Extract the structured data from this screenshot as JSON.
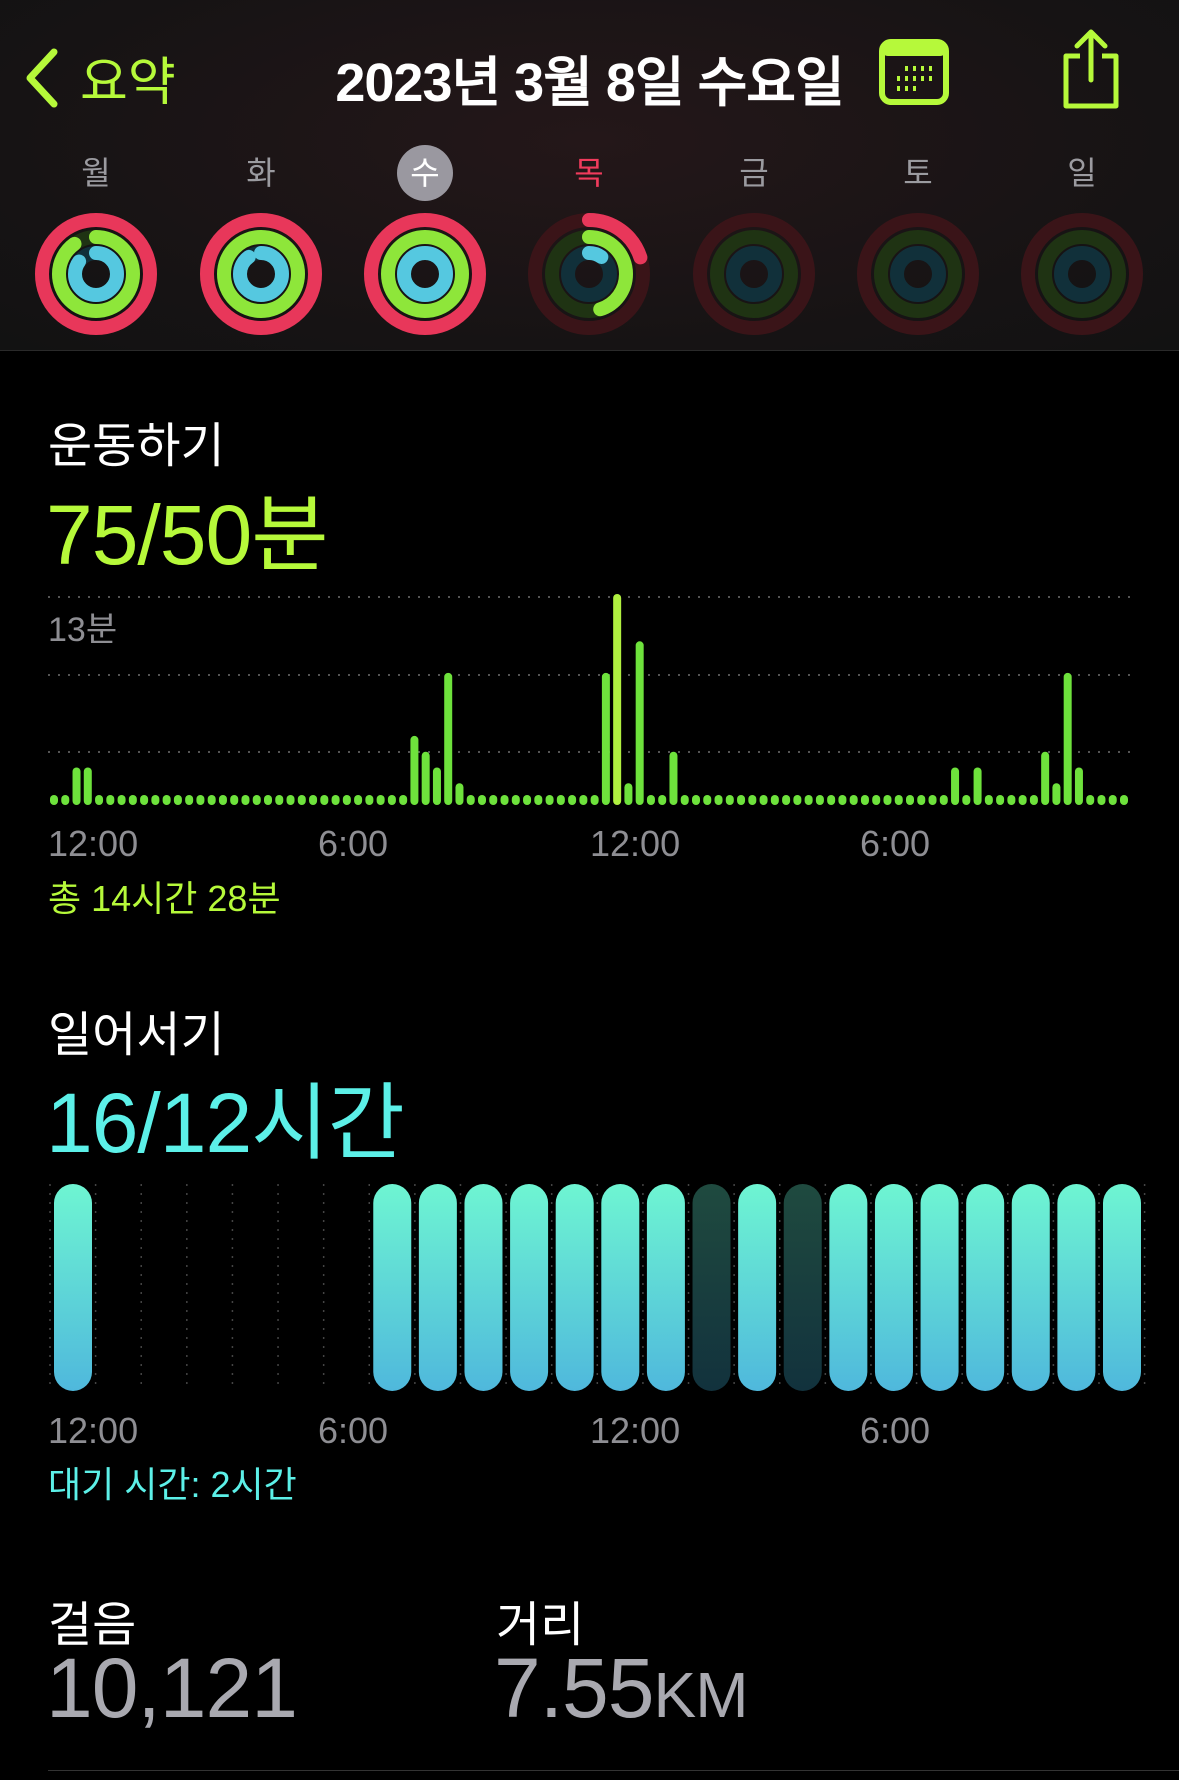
{
  "header": {
    "back_label": "요약",
    "title": "2023년 3월 8일 수요일",
    "calendar_icon": "calendar-icon",
    "share_icon": "share-icon",
    "days": [
      {
        "label": "월",
        "move": 1.0,
        "exercise": 0.9,
        "stand": 0.85,
        "state": "past"
      },
      {
        "label": "화",
        "move": 1.0,
        "exercise": 1.0,
        "stand": 0.9,
        "state": "past"
      },
      {
        "label": "수",
        "move": 1.0,
        "exercise": 1.0,
        "stand": 1.0,
        "state": "selected"
      },
      {
        "label": "목",
        "move": 0.2,
        "exercise": 0.45,
        "stand": 0.1,
        "state": "today"
      },
      {
        "label": "금",
        "move": 0,
        "exercise": 0,
        "stand": 0,
        "state": "future"
      },
      {
        "label": "토",
        "move": 0,
        "exercise": 0,
        "stand": 0,
        "state": "future"
      },
      {
        "label": "일",
        "move": 0,
        "exercise": 0,
        "stand": 0,
        "state": "future"
      }
    ]
  },
  "colors": {
    "accent": "#b6f93a",
    "exercise": "#6ee23c",
    "stand": "#5cf0e8",
    "move": "#f03b5c"
  },
  "exercise": {
    "title": "운동하기",
    "value": "75/50분",
    "total": "총 14시간 28분",
    "chart_data": {
      "type": "bar",
      "interval": "15분",
      "ymax_label": "13분",
      "ylim": [
        0,
        13
      ],
      "x_ticks": [
        "12:00",
        "6:00",
        "12:00",
        "6:00"
      ],
      "values": [
        0,
        0,
        2,
        2,
        0,
        0,
        0,
        0,
        0,
        0,
        0,
        0,
        0,
        0,
        0,
        0,
        0,
        0,
        0,
        0,
        0,
        0,
        0,
        0,
        0,
        0,
        0,
        0,
        0,
        0,
        0,
        0,
        4,
        3,
        2,
        8,
        1,
        0,
        0,
        0,
        0,
        0,
        0,
        0,
        0,
        0,
        0,
        0,
        0,
        8,
        13,
        1,
        10,
        0,
        0,
        3,
        0,
        0,
        0,
        0,
        0,
        0,
        0,
        0,
        0,
        0,
        0,
        0,
        0,
        0,
        0,
        0,
        0,
        0,
        0,
        0,
        0,
        0,
        0,
        0,
        2,
        0,
        2,
        0,
        0,
        0,
        0,
        0,
        3,
        1,
        8,
        2,
        0,
        0,
        0,
        0
      ]
    }
  },
  "stand": {
    "title": "일어서기",
    "value": "16/12시간",
    "idle": "대기 시간: 2시간",
    "chart_data": {
      "type": "bar",
      "x_ticks": [
        "12:00",
        "6:00",
        "12:00",
        "6:00"
      ],
      "hours": [
        "stood",
        "none",
        "none",
        "none",
        "none",
        "none",
        "none",
        "stood",
        "stood",
        "stood",
        "stood",
        "stood",
        "stood",
        "stood",
        "inactive",
        "stood",
        "inactive",
        "stood",
        "stood",
        "stood",
        "stood",
        "stood",
        "stood",
        "stood"
      ]
    }
  },
  "steps": {
    "label": "걸음",
    "value": "10,121"
  },
  "distance": {
    "label": "거리",
    "value": "7.55",
    "unit": "KM"
  }
}
